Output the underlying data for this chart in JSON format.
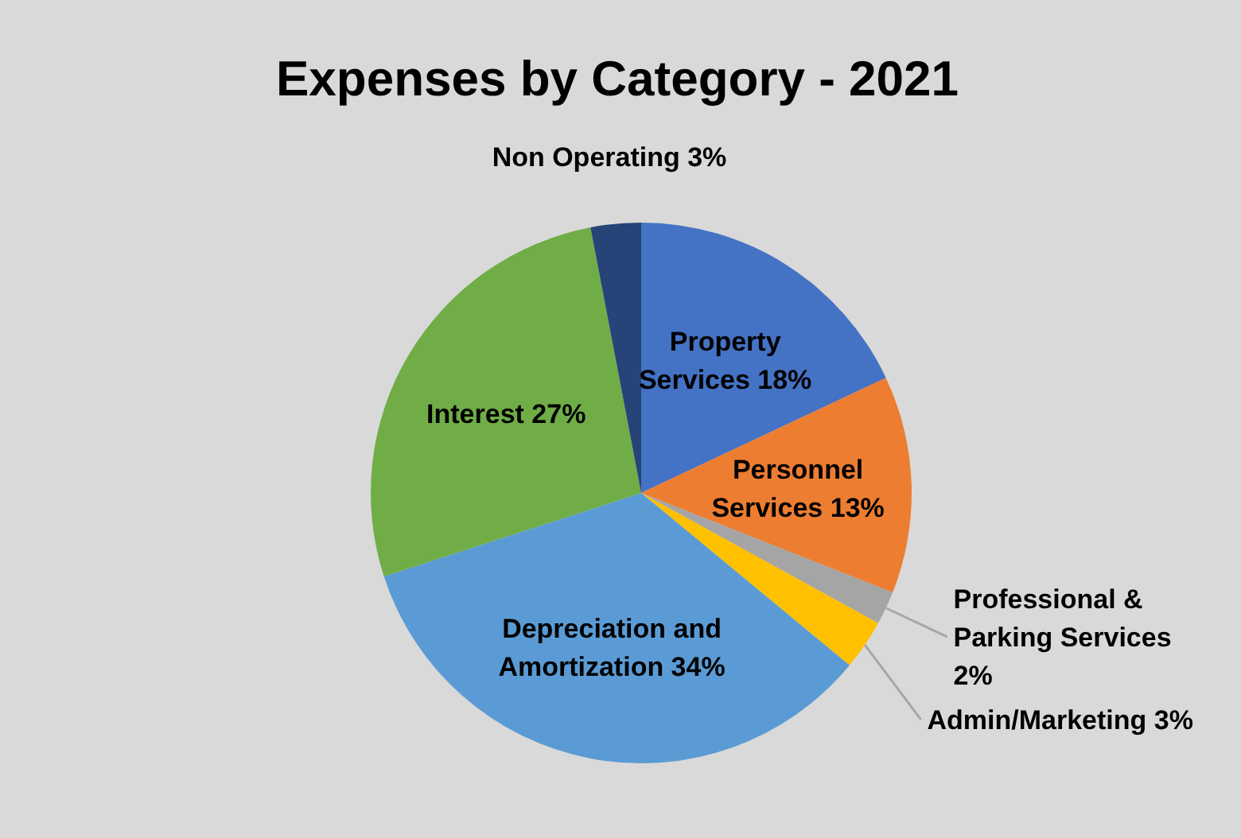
{
  "chart_data": {
    "type": "pie",
    "title": "Expenses by Category - 2021",
    "categories": [
      "Property Services",
      "Personnel Services",
      "Professional & Parking Services",
      "Admin/Marketing",
      "Depreciation and Amortization",
      "Interest",
      "Non Operating"
    ],
    "values": [
      18,
      13,
      2,
      3,
      34,
      27,
      3
    ],
    "value_labels": [
      "18%",
      "13%",
      "2%",
      "3%",
      "34%",
      "27%",
      "3%"
    ],
    "colors": [
      "#4472c4",
      "#ed7d31",
      "#a5a5a5",
      "#ffc000",
      "#5b9bd5",
      "#70ad47",
      "#264478"
    ]
  }
}
